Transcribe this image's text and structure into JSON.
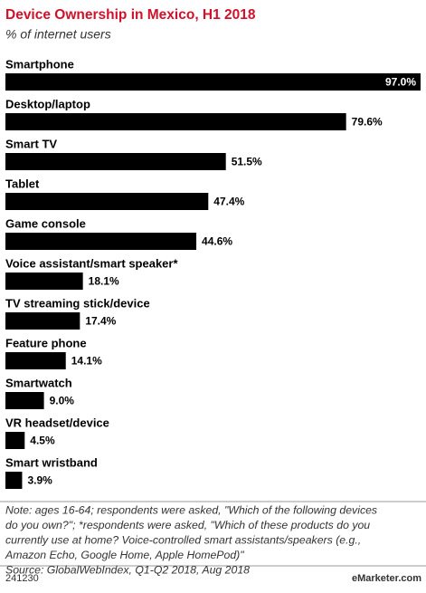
{
  "chart_data": {
    "type": "bar",
    "orientation": "horizontal",
    "title": "Device Ownership in Mexico, H1 2018",
    "subtitle": "% of internet users",
    "categories": [
      "Smartphone",
      "Desktop/laptop",
      "Smart TV",
      "Tablet",
      "Game console",
      "Voice assistant/smart speaker*",
      "TV streaming stick/device",
      "Feature phone",
      "Smartwatch",
      "VR headset/device",
      "Smart wristband"
    ],
    "values": [
      97.0,
      79.6,
      51.5,
      47.4,
      44.6,
      18.1,
      17.4,
      14.1,
      9.0,
      4.5,
      3.9
    ],
    "value_labels": [
      "97.0%",
      "79.6%",
      "51.5%",
      "47.4%",
      "44.6%",
      "18.1%",
      "17.4%",
      "14.1%",
      "9.0%",
      "4.5%",
      "3.9%"
    ],
    "color": "#000000",
    "note": [
      "Note: ages 16-64; respondents were asked, \"Which of the following devices",
      "do you own?\"; *respondents were asked, \"Which of these products do you",
      "currently use at home? Voice-controlled smart assistants/speakers (e.g.,",
      "Amazon Echo, Google Home, Apple HomePod)\""
    ],
    "source": "Source: GlobalWebIndex, Q1-Q2 2018, Aug 2018",
    "chart_id": "241230",
    "brand": "eMarketer.com"
  }
}
